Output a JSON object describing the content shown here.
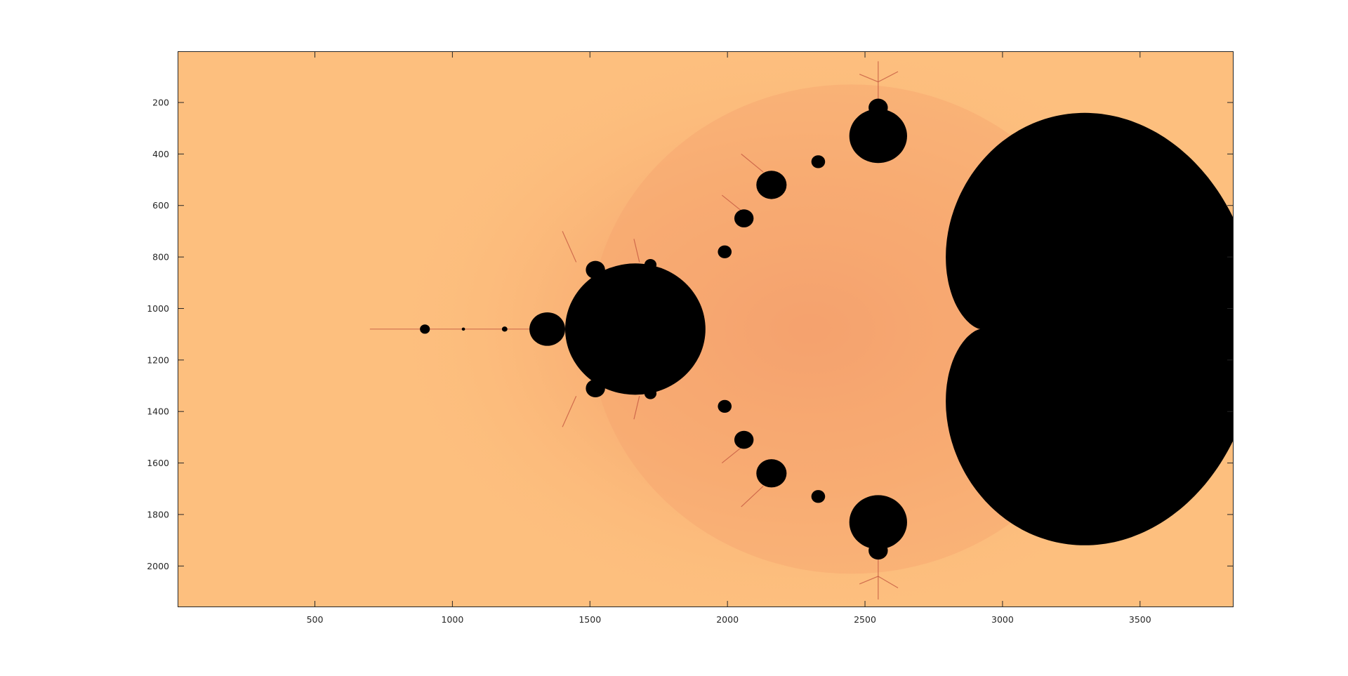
{
  "chart_data": {
    "type": "heatmap",
    "title": "",
    "xlabel": "",
    "ylabel": "",
    "xlim": [
      1,
      3840
    ],
    "ylim": [
      2160,
      1
    ],
    "y_direction": "reverse",
    "x_ticks": [
      500,
      1000,
      1500,
      2000,
      2500,
      3000,
      3500
    ],
    "y_ticks": [
      200,
      400,
      600,
      800,
      1000,
      1200,
      1400,
      1600,
      1800,
      2000
    ],
    "x_tick_labels": [
      "500",
      "1000",
      "1500",
      "2000",
      "2500",
      "3000",
      "3500"
    ],
    "y_tick_labels": [
      "200",
      "400",
      "600",
      "800",
      "1000",
      "1200",
      "1400",
      "1600",
      "1800",
      "2000"
    ],
    "image": {
      "description_kind": "mandelbrot-set",
      "main_cardioid_cusp": [
        2920,
        1080
      ],
      "main_cardioid_left_edge": [
        1910,
        1080
      ],
      "period2_bulb_center": [
        1665,
        1080
      ],
      "period2_bulb_radius": 255,
      "period4_bulb_center": [
        1345,
        1080
      ],
      "period4_bulb_radius": 65,
      "mini_brot_center": [
        900,
        1080
      ],
      "spike_start_x": 700,
      "top_bulb_center": [
        2548,
        330
      ],
      "bottom_bulb_center": [
        2548,
        1830
      ],
      "bulb_radius_period3": 105
    },
    "colors": {
      "background": "#fdbf7e",
      "halo": "#f6a46f",
      "set": "#000000",
      "filament": "#c2543e",
      "axes": "#262626"
    }
  }
}
